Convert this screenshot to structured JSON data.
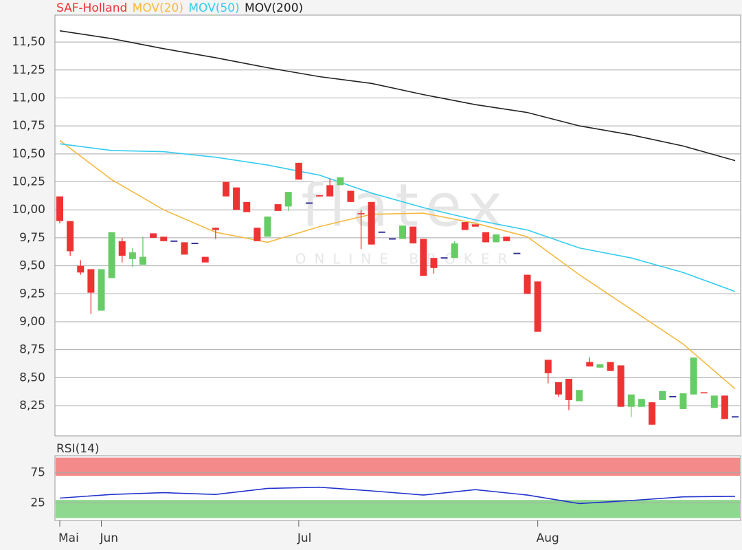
{
  "chart_data": [
    {
      "type": "candlestick",
      "name": "SAF-Holland",
      "name_color": "#ee3333",
      "watermark": "flatex",
      "watermark_subtitle": "ONLINE BROKER",
      "categories": [
        "Mai",
        null,
        null,
        null,
        "Jun",
        null,
        null,
        null,
        null,
        null,
        null,
        null,
        null,
        null,
        null,
        null,
        null,
        null,
        null,
        null,
        null,
        null,
        null,
        "Jul",
        null,
        null,
        null,
        null,
        null,
        null,
        null,
        null,
        null,
        null,
        null,
        null,
        null,
        null,
        null,
        null,
        null,
        null,
        null,
        null,
        null,
        null,
        "Aug",
        null,
        null,
        null,
        null,
        null,
        null,
        null,
        null,
        null,
        null,
        null,
        null,
        null,
        null,
        null,
        null,
        null,
        null,
        null
      ],
      "open": [
        10.12,
        9.9,
        9.5,
        9.47,
        9.1,
        9.39,
        9.72,
        9.56,
        9.51,
        9.79,
        9.76,
        9.72,
        9.71,
        9.7,
        9.58,
        9.84,
        10.25,
        10.2,
        10.07,
        9.84,
        9.76,
        10.05,
        10.03,
        10.42,
        10.06,
        10.13,
        10.22,
        10.22,
        10.17,
        9.97,
        10.07,
        9.8,
        9.74,
        9.74,
        9.85,
        9.74,
        9.57,
        9.57,
        9.57,
        9.89,
        9.87,
        9.8,
        9.71,
        9.76,
        9.61,
        9.42,
        9.36,
        8.66,
        8.46,
        8.49,
        8.29,
        8.64,
        8.59,
        8.64,
        8.61,
        8.24,
        8.24,
        8.28,
        8.3,
        8.33,
        8.22,
        8.35,
        8.37,
        8.23,
        8.34,
        8.15
      ],
      "high": [
        10.12,
        9.9,
        9.55,
        9.47,
        9.47,
        9.8,
        9.75,
        9.66,
        9.76,
        9.79,
        9.76,
        9.72,
        9.71,
        9.7,
        9.58,
        9.84,
        10.25,
        10.2,
        10.07,
        9.84,
        9.94,
        10.05,
        10.16,
        10.42,
        10.06,
        10.13,
        10.28,
        10.29,
        10.17,
        10.0,
        10.07,
        9.8,
        9.74,
        9.86,
        9.85,
        9.74,
        9.57,
        9.57,
        9.72,
        9.89,
        9.87,
        9.8,
        9.78,
        9.76,
        9.61,
        9.42,
        9.36,
        8.66,
        8.46,
        8.49,
        8.39,
        8.68,
        8.62,
        8.64,
        8.61,
        8.35,
        8.31,
        8.28,
        8.38,
        8.33,
        8.36,
        8.68,
        8.37,
        8.34,
        8.34,
        8.15
      ],
      "low": [
        9.88,
        9.59,
        9.42,
        9.07,
        9.1,
        9.39,
        9.53,
        9.49,
        9.51,
        9.75,
        9.72,
        9.72,
        9.6,
        9.7,
        9.53,
        9.74,
        10.12,
        10.0,
        9.98,
        9.72,
        9.76,
        9.99,
        9.99,
        10.27,
        10.06,
        10.12,
        10.12,
        10.22,
        10.07,
        9.65,
        9.69,
        9.8,
        9.74,
        9.74,
        9.7,
        9.41,
        9.43,
        9.57,
        9.57,
        9.82,
        9.85,
        9.71,
        9.71,
        9.72,
        9.61,
        9.25,
        8.91,
        8.45,
        8.33,
        8.21,
        8.29,
        8.6,
        8.59,
        8.56,
        8.24,
        8.15,
        8.24,
        8.08,
        8.3,
        8.33,
        8.22,
        8.35,
        8.36,
        8.23,
        8.13,
        8.15
      ],
      "close": [
        9.9,
        9.63,
        9.44,
        9.26,
        9.47,
        9.8,
        9.59,
        9.62,
        9.58,
        9.75,
        9.72,
        9.72,
        9.6,
        9.7,
        9.53,
        9.82,
        10.12,
        10.0,
        9.98,
        9.72,
        9.94,
        9.99,
        10.16,
        10.27,
        10.06,
        10.12,
        10.12,
        10.29,
        10.07,
        9.96,
        9.69,
        9.8,
        9.74,
        9.86,
        9.7,
        9.41,
        9.48,
        9.57,
        9.7,
        9.82,
        9.85,
        9.71,
        9.78,
        9.72,
        9.61,
        9.25,
        8.91,
        8.54,
        8.35,
        8.3,
        8.39,
        8.6,
        8.62,
        8.56,
        8.24,
        8.35,
        8.31,
        8.08,
        8.38,
        8.33,
        8.36,
        8.68,
        8.36,
        8.34,
        8.13,
        8.15
      ],
      "up_color": "#66cc66",
      "down_color": "#ee3333",
      "flat_color": "#333399",
      "series": [
        {
          "name": "MOV(20)",
          "color": "#f5b942",
          "x": [
            0,
            5,
            10,
            15,
            20,
            25,
            30,
            35,
            40,
            45,
            50,
            55,
            60,
            65
          ],
          "values": [
            10.62,
            10.27,
            10.0,
            9.8,
            9.71,
            9.85,
            9.96,
            9.97,
            9.88,
            9.76,
            9.42,
            9.11,
            8.8,
            8.4
          ]
        },
        {
          "name": "MOV(50)",
          "color": "#33ccee",
          "x": [
            0,
            5,
            10,
            15,
            20,
            25,
            30,
            35,
            40,
            45,
            50,
            55,
            60,
            65
          ],
          "values": [
            10.59,
            10.53,
            10.52,
            10.47,
            10.4,
            10.31,
            10.15,
            10.02,
            9.91,
            9.82,
            9.66,
            9.57,
            9.44,
            9.27
          ]
        },
        {
          "name": "MOV(200)",
          "color": "#222222",
          "x": [
            0,
            5,
            10,
            15,
            20,
            25,
            30,
            35,
            40,
            45,
            50,
            55,
            60,
            65
          ],
          "values": [
            11.6,
            11.53,
            11.44,
            11.36,
            11.27,
            11.19,
            11.13,
            11.03,
            10.94,
            10.87,
            10.75,
            10.67,
            10.57,
            10.44
          ]
        }
      ],
      "ylim": [
        7.98,
        11.74
      ],
      "yticks": [
        {
          "value": 8.25,
          "label": "8,25"
        },
        {
          "value": 8.5,
          "label": "8,50"
        },
        {
          "value": 8.75,
          "label": "8,75"
        },
        {
          "value": 9,
          "label": "9,00"
        },
        {
          "value": 9.25,
          "label": "9,25"
        },
        {
          "value": 9.5,
          "label": "9,50"
        },
        {
          "value": 9.75,
          "label": "9,75"
        },
        {
          "value": 10,
          "label": "10,00"
        },
        {
          "value": 10.25,
          "label": "10,25"
        },
        {
          "value": 10.5,
          "label": "10,50"
        },
        {
          "value": 10.75,
          "label": "10,75"
        },
        {
          "value": 11,
          "label": "11,00"
        },
        {
          "value": 11.25,
          "label": "11,25"
        },
        {
          "value": 11.5,
          "label": "11,50"
        }
      ],
      "grid": true
    },
    {
      "type": "line",
      "series": [
        {
          "name": "RSI(14)",
          "color": "#2233cc",
          "x": [
            0,
            5,
            10,
            15,
            20,
            25,
            30,
            35,
            40,
            45,
            50,
            55,
            60,
            65
          ],
          "values": [
            33,
            39,
            42,
            39,
            49,
            51,
            45,
            38,
            47,
            38,
            24,
            29,
            35,
            36
          ]
        }
      ],
      "bands": [
        {
          "range": [
            70,
            100
          ],
          "color": "#f48a8a"
        },
        {
          "range": [
            0,
            30
          ],
          "color": "#8fd88f"
        }
      ],
      "ylim": [
        -4,
        103
      ],
      "yticks": [
        25,
        75
      ],
      "grid": true
    }
  ]
}
